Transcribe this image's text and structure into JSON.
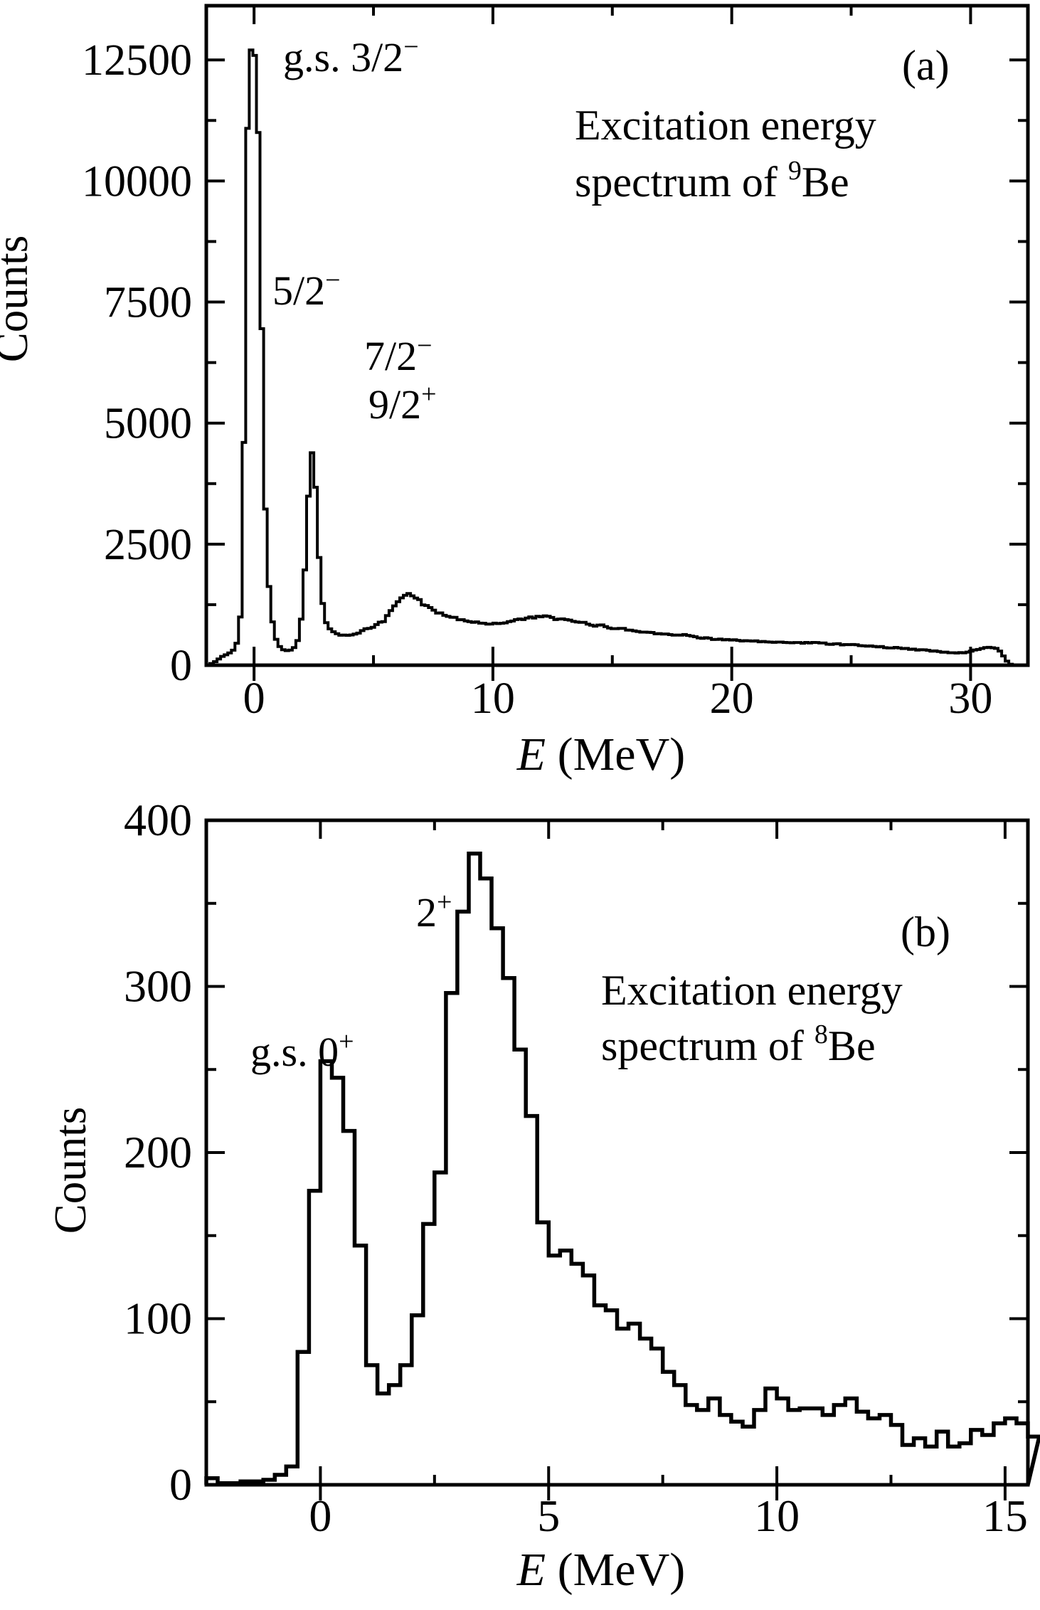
{
  "figure": {
    "background": "#ffffff",
    "ink": "#000000"
  },
  "panels": [
    {
      "tag": "(a)",
      "title_line1": "Excitation energy",
      "title_line2_pre": "spectrum of ",
      "title_line2_sup": "9",
      "title_line2_post": "Be",
      "ann_gs_base": "g.s. 3/2",
      "ann_gs_sup": "−",
      "ann_52_base": "5/2",
      "ann_52_sup": "−",
      "ann_72_base": "7/2",
      "ann_72_sup": "−",
      "ann_92_base": "9/2",
      "ann_92_sup": "+",
      "xlabel_italic": "E",
      "xlabel_rest": " (MeV)",
      "ylabel": "Counts"
    },
    {
      "tag": "(b)",
      "title_line1": "Excitation energy",
      "title_line2_pre": "spectrum of ",
      "title_line2_sup": "8",
      "title_line2_post": "Be",
      "ann_gs_base": "g.s. 0",
      "ann_gs_sup": "+",
      "ann_2_base": "2",
      "ann_2_sup": "+",
      "xlabel_italic": "E",
      "xlabel_rest": " (MeV)",
      "ylabel": "Counts"
    }
  ],
  "chart_data": [
    {
      "type": "line",
      "line_style": "histogram-step",
      "title": "Excitation energy spectrum of 9Be",
      "xlabel": "E (MeV)",
      "ylabel": "Counts",
      "xlim": [
        -2,
        32.4
      ],
      "ylim": [
        0,
        13620
      ],
      "x_major_ticks": [
        0,
        10,
        20,
        30
      ],
      "x_minor_ticks": [
        5,
        15,
        25
      ],
      "y_major_ticks": [
        0,
        2500,
        5000,
        7500,
        10000,
        12500
      ],
      "y_minor_ticks": [
        1250,
        3750,
        6250,
        8750,
        11250
      ],
      "grid": false,
      "bin_width": 0.15,
      "noise_fraction": 0.05,
      "annotations": [
        "g.s. 3/2−",
        "5/2−",
        "7/2−",
        "9/2+",
        "(a)"
      ],
      "anchors": [
        [
          -2.0,
          0
        ],
        [
          -1.9,
          10
        ],
        [
          -1.75,
          40
        ],
        [
          -1.6,
          80
        ],
        [
          -1.45,
          140
        ],
        [
          -1.3,
          190
        ],
        [
          -1.15,
          220
        ],
        [
          -1.0,
          260
        ],
        [
          -0.85,
          320
        ],
        [
          -0.7,
          480
        ],
        [
          -0.55,
          1100
        ],
        [
          -0.45,
          3400
        ],
        [
          -0.35,
          8200
        ],
        [
          -0.25,
          12050
        ],
        [
          -0.15,
          12700
        ],
        [
          -0.05,
          12720
        ],
        [
          0.05,
          12550
        ],
        [
          0.15,
          11600
        ],
        [
          0.25,
          9200
        ],
        [
          0.35,
          6200
        ],
        [
          0.45,
          3600
        ],
        [
          0.55,
          2100
        ],
        [
          0.7,
          1150
        ],
        [
          0.85,
          640
        ],
        [
          1.0,
          430
        ],
        [
          1.15,
          340
        ],
        [
          1.3,
          300
        ],
        [
          1.5,
          305
        ],
        [
          1.65,
          345
        ],
        [
          1.8,
          450
        ],
        [
          1.95,
          800
        ],
        [
          2.1,
          1700
        ],
        [
          2.25,
          3300
        ],
        [
          2.4,
          4450
        ],
        [
          2.5,
          4200
        ],
        [
          2.6,
          3500
        ],
        [
          2.7,
          2400
        ],
        [
          2.85,
          1350
        ],
        [
          3.0,
          900
        ],
        [
          3.2,
          730
        ],
        [
          3.45,
          650
        ],
        [
          3.7,
          615
        ],
        [
          4.0,
          620
        ],
        [
          4.3,
          655
        ],
        [
          4.6,
          715
        ],
        [
          5.0,
          800
        ],
        [
          5.4,
          905
        ],
        [
          5.8,
          1150
        ],
        [
          6.1,
          1390
        ],
        [
          6.4,
          1480
        ],
        [
          6.7,
          1430
        ],
        [
          7.0,
          1300
        ],
        [
          7.4,
          1160
        ],
        [
          7.8,
          1070
        ],
        [
          8.2,
          1010
        ],
        [
          8.6,
          955
        ],
        [
          9.0,
          905
        ],
        [
          9.5,
          865
        ],
        [
          10.0,
          860
        ],
        [
          10.5,
          885
        ],
        [
          11.0,
          930
        ],
        [
          11.5,
          975
        ],
        [
          12.0,
          1005
        ],
        [
          12.4,
          985
        ],
        [
          12.8,
          950
        ],
        [
          13.2,
          915
        ],
        [
          13.6,
          885
        ],
        [
          14.0,
          850
        ],
        [
          14.5,
          815
        ],
        [
          15.0,
          775
        ],
        [
          15.5,
          745
        ],
        [
          16.0,
          705
        ],
        [
          16.5,
          678
        ],
        [
          17.0,
          658
        ],
        [
          17.5,
          638
        ],
        [
          18.0,
          618
        ],
        [
          18.5,
          588
        ],
        [
          19.0,
          555
        ],
        [
          19.5,
          532
        ],
        [
          20.0,
          515
        ],
        [
          20.5,
          502
        ],
        [
          21.0,
          490
        ],
        [
          21.5,
          480
        ],
        [
          22.0,
          472
        ],
        [
          22.5,
          466
        ],
        [
          23.0,
          458
        ],
        [
          23.5,
          468
        ],
        [
          24.0,
          448
        ],
        [
          24.5,
          436
        ],
        [
          25.0,
          424
        ],
        [
          25.5,
          406
        ],
        [
          26.0,
          386
        ],
        [
          26.5,
          370
        ],
        [
          27.0,
          354
        ],
        [
          27.5,
          332
        ],
        [
          28.0,
          312
        ],
        [
          28.5,
          294
        ],
        [
          29.0,
          266
        ],
        [
          29.3,
          250
        ],
        [
          29.6,
          256
        ],
        [
          29.9,
          272
        ],
        [
          30.2,
          312
        ],
        [
          30.5,
          352
        ],
        [
          30.8,
          372
        ],
        [
          31.0,
          362
        ],
        [
          31.15,
          330
        ],
        [
          31.3,
          252
        ],
        [
          31.45,
          130
        ],
        [
          31.6,
          40
        ],
        [
          31.75,
          0
        ],
        [
          32.4,
          0
        ]
      ]
    },
    {
      "type": "line",
      "line_style": "histogram-step",
      "title": "Excitation energy spectrum of 8Be",
      "xlabel": "E (MeV)",
      "ylabel": "Counts",
      "xlim": [
        -2.5,
        15.5
      ],
      "ylim": [
        0,
        400
      ],
      "x_major_ticks": [
        0,
        5,
        10,
        15
      ],
      "x_minor_ticks": [
        2.5,
        7.5,
        12.5
      ],
      "y_major_ticks": [
        0,
        100,
        200,
        300,
        400
      ],
      "y_minor_ticks": [
        50,
        150,
        250,
        350
      ],
      "grid": false,
      "annotations": [
        "g.s. 0+",
        "2+",
        "(b)"
      ],
      "bins": {
        "start": -2.5,
        "width": 0.25,
        "values": [
          4,
          1,
          1,
          2,
          2,
          3,
          6,
          11,
          80,
          177,
          255,
          245,
          213,
          144,
          72,
          55,
          60,
          72,
          102,
          157,
          188,
          296,
          345,
          380,
          365,
          335,
          305,
          262,
          222,
          158,
          138,
          141,
          133,
          126,
          108,
          105,
          94,
          97,
          88,
          82,
          68,
          60,
          48,
          45,
          52,
          42,
          38,
          35,
          45,
          58,
          52,
          45,
          46,
          46,
          42,
          48,
          52,
          44,
          40,
          42,
          36,
          24,
          28,
          23,
          32,
          23,
          25,
          33,
          30,
          37,
          40,
          37,
          29
        ]
      }
    }
  ]
}
